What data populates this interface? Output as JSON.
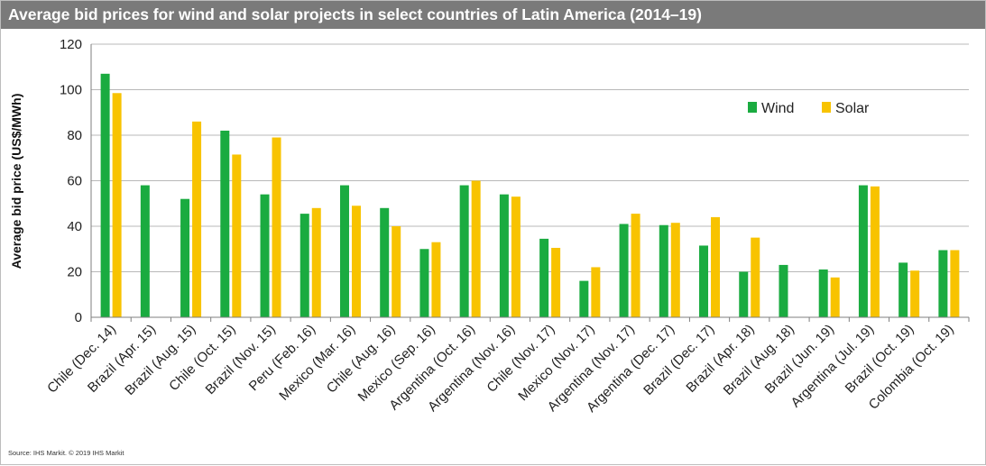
{
  "header": {
    "title": "Average bid prices for wind and solar projects in select countries of Latin America (2014–19)"
  },
  "footer": {
    "source": "Source: IHS Markit. © 2019 IHS Markit"
  },
  "chart_data": {
    "type": "bar",
    "title": "Average bid prices for wind and solar projects in select countries of Latin America (2014–19)",
    "xlabel": "",
    "ylabel": "Average bid price (US$/MWh)",
    "ylim": [
      0,
      120
    ],
    "yticks": [
      0,
      20,
      40,
      60,
      80,
      100,
      120
    ],
    "grid": true,
    "legend_position": "top-right",
    "categories": [
      "Chile (Dec. 14)",
      "Brazil (Apr. 15)",
      "Brazil (Aug. 15)",
      "Chile (Oct. 15)",
      "Brazil (Nov. 15)",
      "Peru (Feb. 16)",
      "Mexico (Mar. 16)",
      "Chile (Aug. 16)",
      "Mexico (Sep. 16)",
      "Argentina (Oct. 16)",
      "Argentina (Nov. 16)",
      "Chile (Nov. 17)",
      "Mexico (Nov. 17)",
      "Argentina (Nov. 17)",
      "Argentina (Dec. 17)",
      "Brazil (Dec. 17)",
      "Brazil (Apr. 18)",
      "Brazil (Aug. 18)",
      "Brazil (Jun. 19)",
      "Argentina (Jul. 19)",
      "Brazil (Oct. 19)",
      "Colombia (Oct. 19)"
    ],
    "series": [
      {
        "name": "Wind",
        "color": "#1aab40",
        "values": [
          107,
          58,
          52,
          82,
          54,
          45.5,
          58,
          48,
          30,
          58,
          54,
          34.5,
          16,
          41,
          40.5,
          31.5,
          20,
          23,
          21,
          58,
          24,
          29.5
        ]
      },
      {
        "name": "Solar",
        "color": "#f8c300",
        "values": [
          98.5,
          null,
          86,
          71.5,
          79,
          48,
          49,
          40,
          33,
          60,
          53,
          30.5,
          22,
          45.5,
          41.5,
          44,
          35,
          null,
          17.5,
          57.5,
          20.5,
          29.5
        ]
      }
    ]
  }
}
